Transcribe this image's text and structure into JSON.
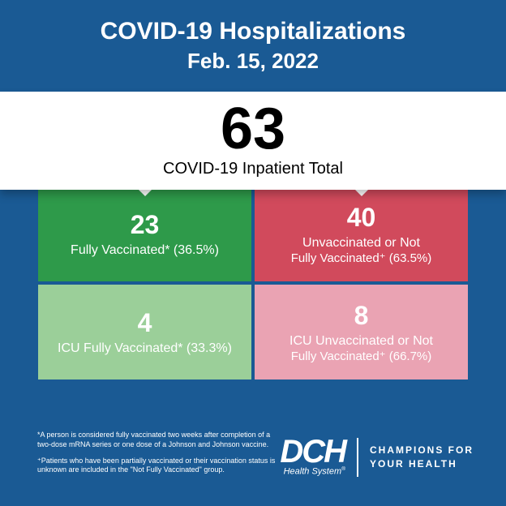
{
  "header": {
    "title": "COVID-19 Hospitalizations",
    "date": "Feb. 15, 2022"
  },
  "total": {
    "value": "63",
    "label": "COVID-19 Inpatient Total"
  },
  "cells": {
    "top_left": {
      "value": "23",
      "label": "Fully Vaccinated* (36.5%)",
      "bg": "#2e9a4a"
    },
    "top_right": {
      "value": "40",
      "label_line1": "Unvaccinated or Not",
      "label_line2": "Fully Vaccinated⁺ (63.5%)",
      "bg": "#d14a5c"
    },
    "bottom_left": {
      "value": "4",
      "label": "ICU Fully Vaccinated* (33.3%)",
      "bg": "#9bcf99"
    },
    "bottom_right": {
      "value": "8",
      "label_line1": "ICU Unvaccinated or Not",
      "label_line2": "Fully Vaccinated⁺ (66.7%)",
      "bg": "#eaa3b3"
    }
  },
  "footnotes": {
    "note1": "*A person is considered fully vaccinated two weeks after completion of a two-dose mRNA series or one dose of a Johnson and Johnson vaccine.",
    "note2": "⁺Patients who have been partially vaccinated or their vaccination status is unknown are included in the \"Not Fully Vaccinated\" group."
  },
  "logo": {
    "mark": "DCH",
    "subtitle": "Health System",
    "reg": "®",
    "tagline_line1": "CHAMPIONS FOR",
    "tagline_line2": "YOUR HEALTH"
  },
  "style": {
    "background": "#1a5a94",
    "band_bg": "#ffffff",
    "text_on_dark": "#ffffff",
    "text_on_light": "#000000"
  }
}
